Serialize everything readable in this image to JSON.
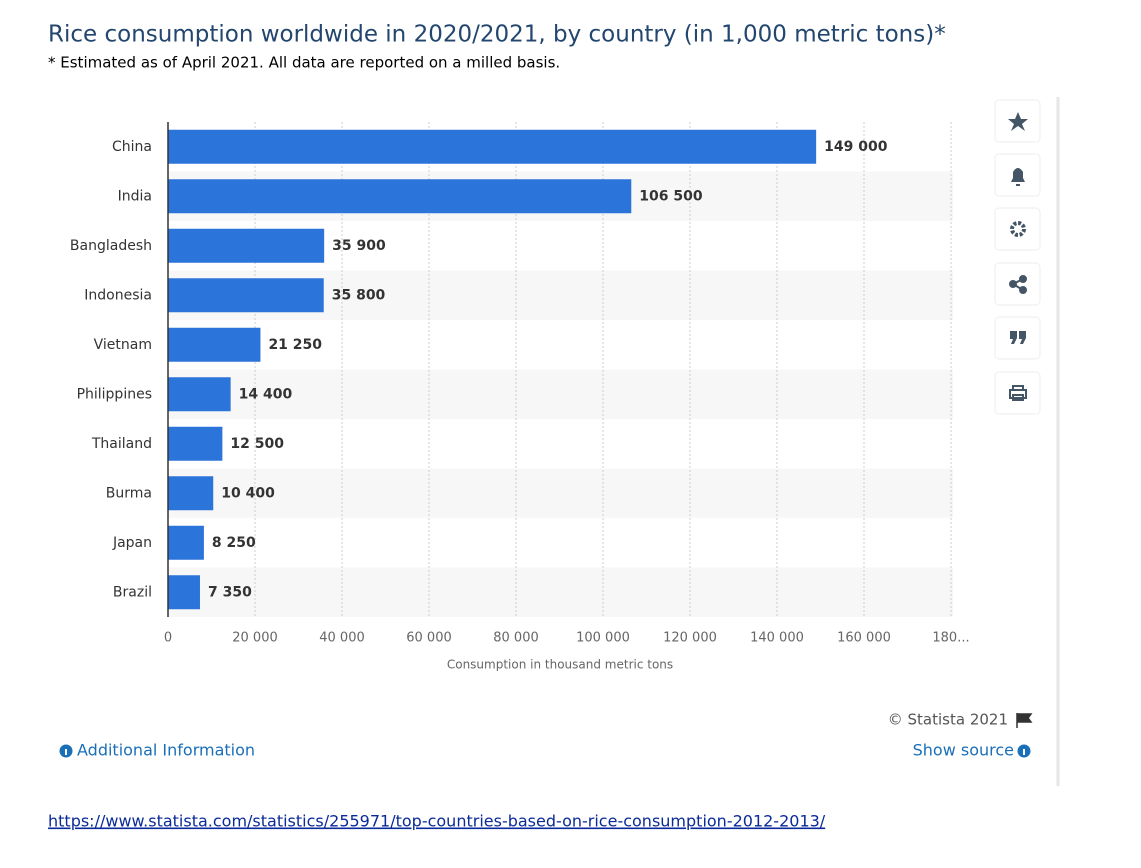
{
  "chart_data": {
    "type": "hbar",
    "title": "Rice consumption worldwide in 2020/2021, by country (in 1,000 metric tons)*",
    "subtitle": "* Estimated as of April 2021. All data are reported on a milled basis.",
    "x_label": "Consumption in thousand metric tons",
    "categories": [
      "China",
      "India",
      "Bangladesh",
      "Indonesia",
      "Vietnam",
      "Philippines",
      "Thailand",
      "Burma",
      "Japan",
      "Brazil"
    ],
    "values": [
      149000,
      106500,
      35900,
      35800,
      21250,
      14400,
      12500,
      10400,
      8250,
      7350
    ],
    "value_labels": [
      "149 000",
      "106 500",
      "35 900",
      "35 800",
      "21 250",
      "14 400",
      "12 500",
      "10 400",
      "8 250",
      "7 350"
    ],
    "color": "#2b74d9",
    "xlim": [
      0,
      180000
    ],
    "xticks": [
      0,
      {
        "value": 20000,
        "label": "20 000"
      },
      {
        "value": 40000,
        "label": "40 000"
      },
      {
        "value": 60000,
        "label": "60 000"
      },
      {
        "value": 80000,
        "label": "80 000"
      },
      {
        "value": 100000,
        "label": "100 000"
      },
      {
        "value": 120000,
        "label": "120 000"
      },
      {
        "value": 140000,
        "label": "140 000"
      },
      {
        "value": 160000,
        "label": "160 000"
      },
      {
        "value": 180000,
        "label": "180..."
      }
    ],
    "grid": true
  },
  "footer": {
    "copyright": "© Statista 2021",
    "additional_info": "Additional Information",
    "show_source": "Show source",
    "url": "https://www.statista.com/statistics/255971/top-countries-based-on-rice-consumption-2012-2013/"
  }
}
